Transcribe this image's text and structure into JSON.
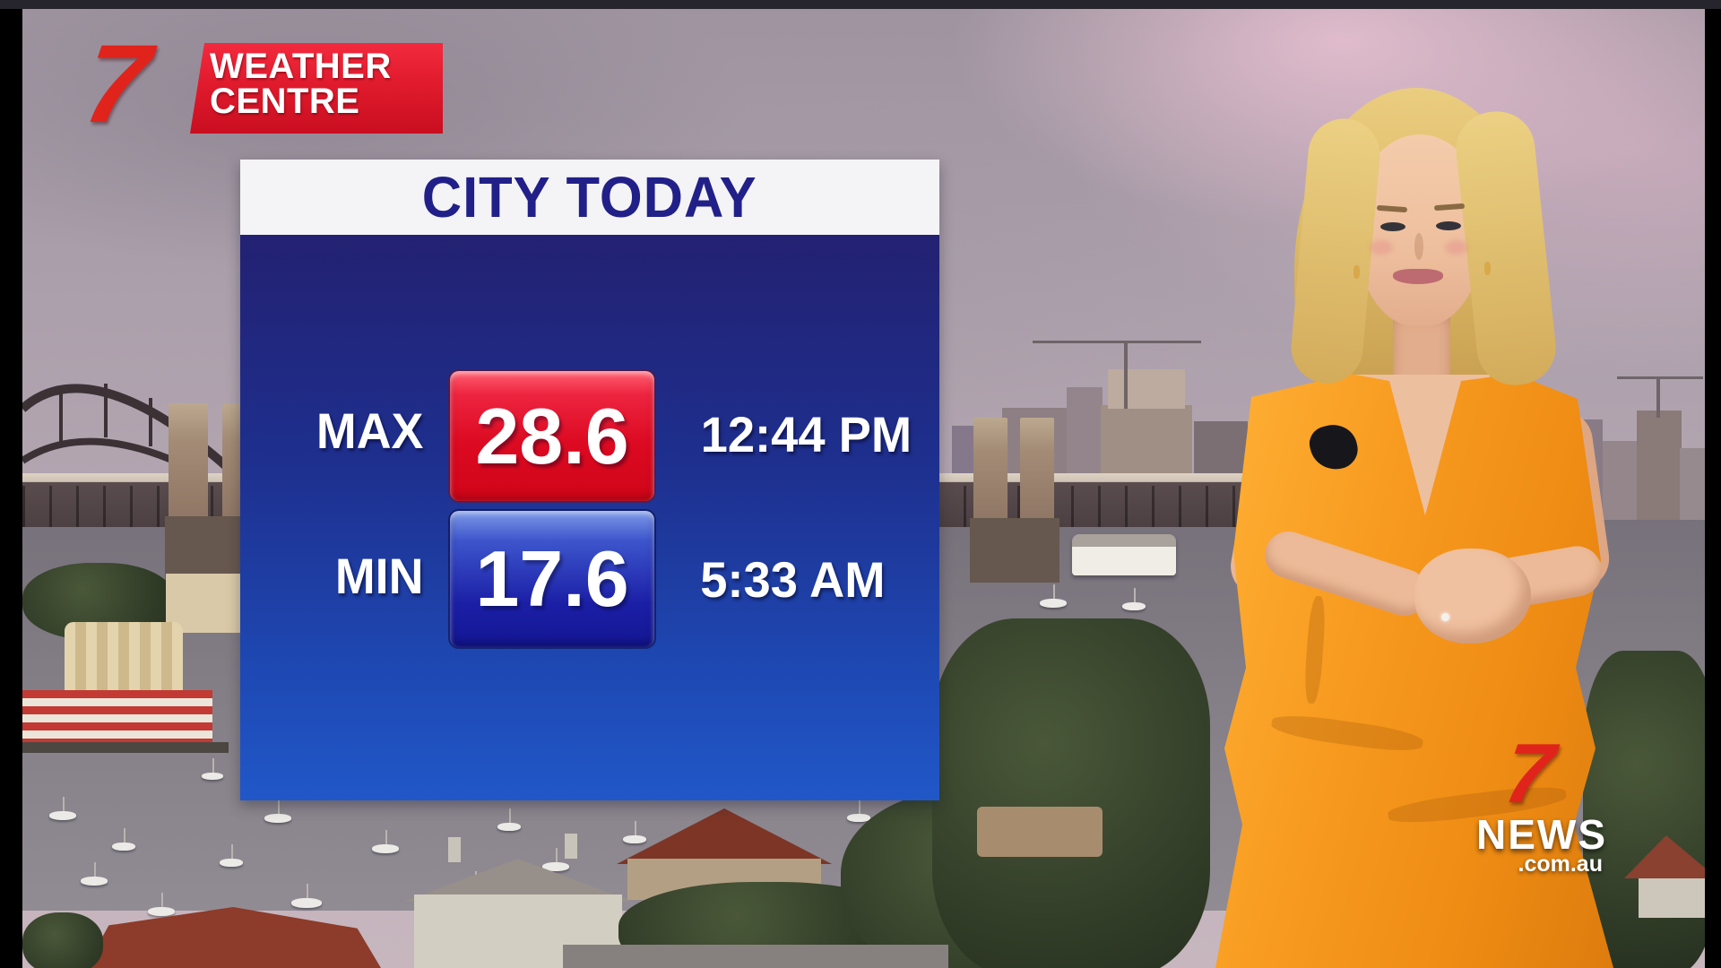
{
  "brand": {
    "seven_glyph": "7",
    "weather_centre_line1": "WEATHER",
    "weather_centre_line2": "CENTRE"
  },
  "panel": {
    "title": "CITY TODAY",
    "rows": [
      {
        "label": "MAX",
        "value": "28.6",
        "time": "12:44 PM"
      },
      {
        "label": "MIN",
        "value": "17.6",
        "time": "5:33 AM"
      }
    ]
  },
  "watermark": {
    "seven_glyph": "7",
    "news": "NEWS",
    "domain": ".com.au"
  },
  "colors": {
    "seven_red": "#e0241b",
    "panel_navy_text": "#212089",
    "panel_top": "#232172",
    "panel_bottom": "#2157c8",
    "max_box_top": "#ee2440",
    "max_box_bottom": "#d00518",
    "min_box_top": "#3d55cc",
    "min_box_bottom": "#141693",
    "dress_orange": "#f5941d"
  }
}
